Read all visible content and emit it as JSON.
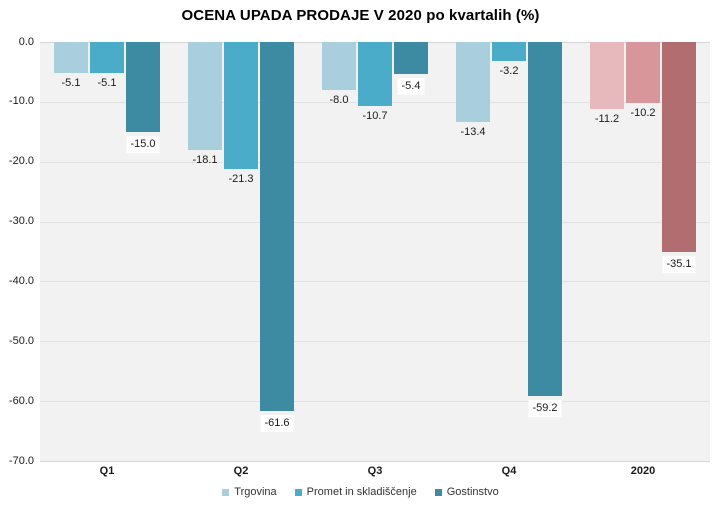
{
  "chart_data": {
    "type": "bar",
    "title": "OCENA UPADA PRODAJE V 2020 po kvartalih (%)",
    "categories": [
      "Q1",
      "Q2",
      "Q3",
      "Q4",
      "2020"
    ],
    "highlight_category": "2020",
    "series": [
      {
        "name": "Trgovina",
        "color": "#a9cede",
        "highlight_color": "#e7b9bc",
        "values": [
          -5.1,
          -18.1,
          -8.0,
          -13.4,
          -11.2
        ]
      },
      {
        "name": "Promet in skladiščenje",
        "color": "#4bacc9",
        "highlight_color": "#d9969a",
        "values": [
          -5.1,
          -21.3,
          -10.7,
          -3.2,
          -10.2
        ]
      },
      {
        "name": "Gostinstvo",
        "color": "#3c8ba3",
        "highlight_color": "#b26d70",
        "values": [
          -15.0,
          -61.6,
          -5.4,
          -59.2,
          -35.1
        ]
      }
    ],
    "ylim": [
      -70,
      0
    ],
    "ytick_step": 10,
    "ytick_labels": [
      "0.0",
      "-10.0",
      "-20.0",
      "-30.0",
      "-40.0",
      "-50.0",
      "-60.0",
      "-70.0"
    ],
    "label_decimals": 1,
    "grid": true,
    "legend_position": "bottom",
    "plot_bg_color": "#f2f2f2",
    "gridline_color": "#e2e2e2",
    "axisline_color": "#d4d4d4"
  }
}
